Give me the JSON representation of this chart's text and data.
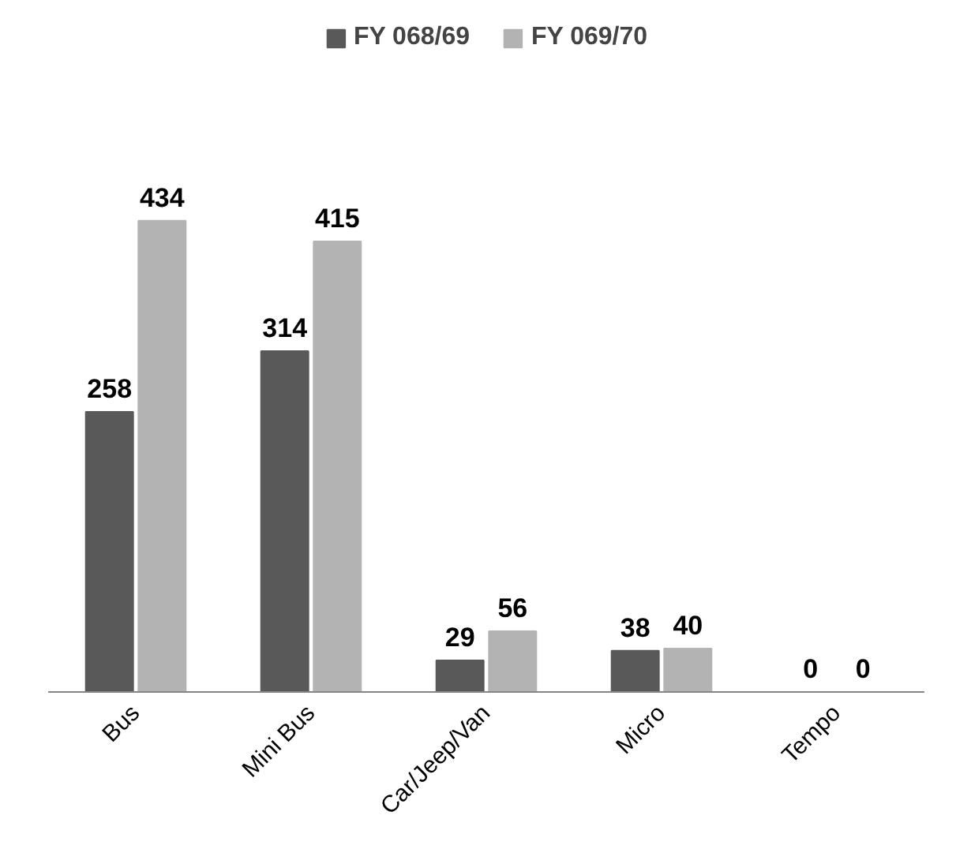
{
  "chart_data": {
    "type": "bar",
    "categories": [
      "Bus",
      "Mini Bus",
      "Car/Jeep/Van",
      "Micro",
      "Tempo"
    ],
    "series": [
      {
        "name": "FY 068/69",
        "color": "#595959",
        "values": [
          258,
          314,
          29,
          38,
          0
        ]
      },
      {
        "name": "FY 069/70",
        "color": "#b3b3b3",
        "values": [
          434,
          415,
          56,
          40,
          0
        ]
      }
    ],
    "data_labels": true,
    "legend": "top",
    "grid": false
  }
}
